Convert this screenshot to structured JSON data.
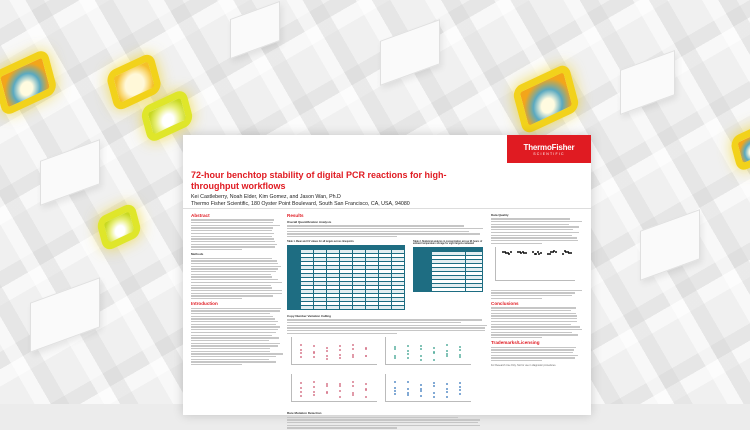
{
  "poster": {
    "logo": {
      "line1": "ThermoFisher",
      "line2": "SCIENTIFIC",
      "color": "#e01b22"
    },
    "title": "72-hour benchtop stability of digital PCR reactions for high-throughput workflows",
    "authors": "Kei Castleberry, Noah Elder, Kim Gomez, and Jason Wan, Ph.D",
    "affiliation": "Thermo Fisher Scientific, 180 Oyster Point Boulevard, South San Francisco, CA, USA, 94080",
    "sections": {
      "abstract": "Abstract",
      "methods": "Methods",
      "introduction": "Introduction",
      "results": "Results",
      "overall_quant": "Overall Quantification Analysis",
      "table1": "Table 1. Mean and CV values for all targets across timepoints",
      "table2": "Table 2. Statistical analysis in concentration across 96 hours of ambient temperature storage for eight targets evaluated",
      "cnv": "Copy Number Variation Calling",
      "rare": "Rare Mutation Detection",
      "data_quality": "Data Quality",
      "conclusions": "Conclusions",
      "trademarks": "Trademarks/Licensing",
      "ruo": "For Research Use Only. Not for use in diagnostic procedures."
    },
    "accent": "#e01b22",
    "table_color": "#1e6d82"
  }
}
